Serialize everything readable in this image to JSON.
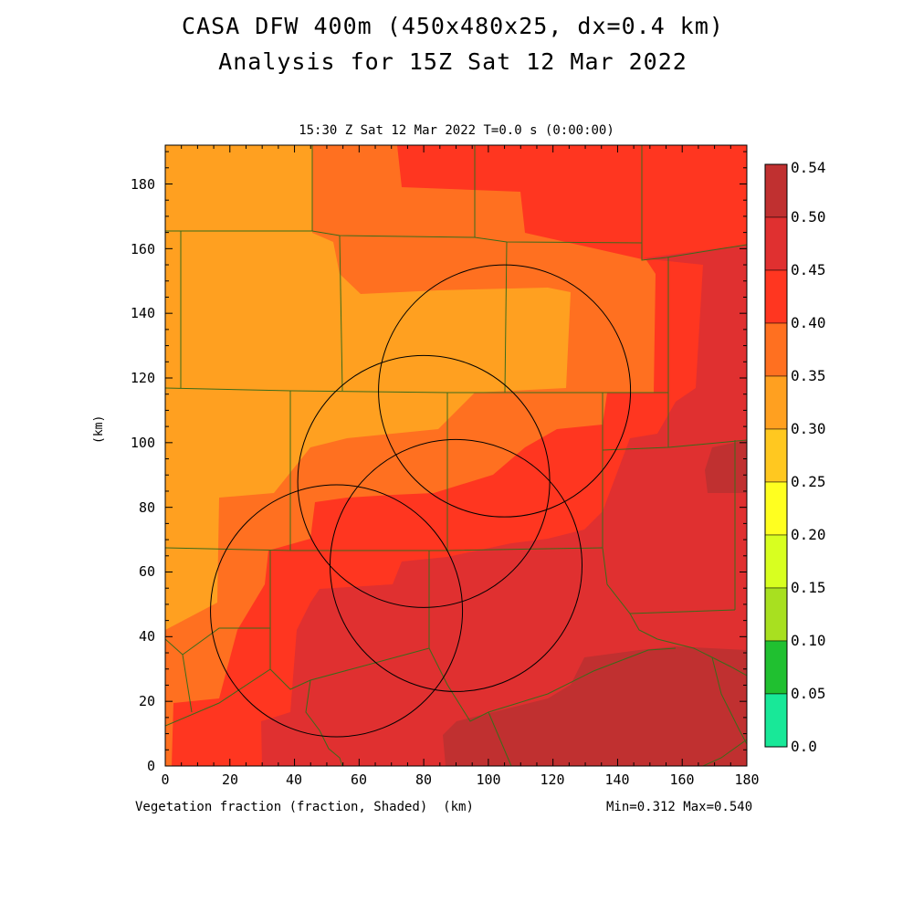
{
  "header": {
    "title_line1": "CASA DFW 400m (450x480x25, dx=0.4 km)",
    "title_line2": "Analysis for 15Z Sat 12 Mar 2022",
    "subtitle": "15:30 Z Sat 12 Mar 2022   T=0.0 s (0:00:00)"
  },
  "axes": {
    "x_ticks": [
      "0",
      "20",
      "40",
      "60",
      "80",
      "100",
      "120",
      "140",
      "160",
      "180"
    ],
    "y_ticks": [
      "0",
      "20",
      "40",
      "60",
      "80",
      "100",
      "120",
      "140",
      "160",
      "180"
    ],
    "y_label": "(km)",
    "x_label": "(km)"
  },
  "footer": {
    "field_label": "Vegetation fraction (fraction, Shaded)",
    "x_unit": "(km)",
    "min_max": "Min=0.312 Max=0.540"
  },
  "colorbar": {
    "labels": [
      "0.54",
      "0.50",
      "0.45",
      "0.40",
      "0.35",
      "0.30",
      "0.25",
      "0.20",
      "0.15",
      "0.10",
      "0.05",
      "0.0"
    ],
    "colors": [
      "#c03030",
      "#e03030",
      "#ff3620",
      "#ff7020",
      "#ffa020",
      "#ffc820",
      "#ffff20",
      "#d8ff20",
      "#a8e020",
      "#20c030",
      "#18e070",
      "#18e898"
    ]
  },
  "map": {
    "fill_colors": {
      "c030": "#ffa020",
      "c035": "#ff7020",
      "c040": "#ff3620",
      "c045": "#e03030",
      "c050": "#c03030"
    },
    "radar_rings": [
      {
        "center_km": [
          105,
          116
        ],
        "radius_km": 39
      },
      {
        "center_km": [
          80,
          88
        ],
        "radius_km": 39
      },
      {
        "center_km": [
          53,
          48
        ],
        "radius_km": 39
      },
      {
        "center_km": [
          90,
          62
        ],
        "radius_km": 39
      }
    ]
  }
}
